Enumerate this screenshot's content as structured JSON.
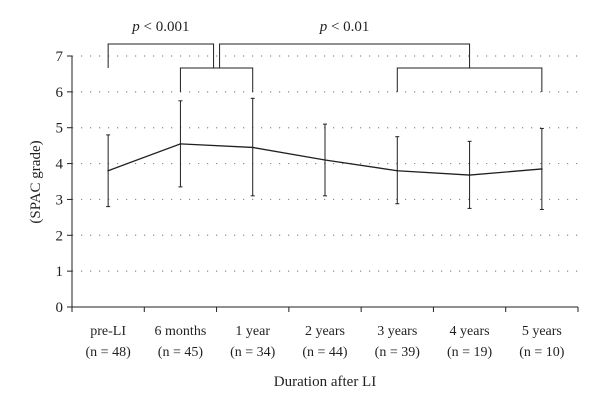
{
  "chart_data": {
    "type": "line",
    "xlabel": "Duration after LI",
    "ylabel": "(SPAC grade)",
    "ylim": [
      0,
      7
    ],
    "yticks": [
      0,
      1,
      2,
      3,
      4,
      5,
      6,
      7
    ],
    "grid": "horizontal dotted",
    "categories": [
      "pre-LI",
      "6 months",
      "1 year",
      "2 years",
      "3 years",
      "4 years",
      "5 years"
    ],
    "n_labels": [
      "(n = 48)",
      "(n = 45)",
      "(n = 34)",
      "(n = 44)",
      "(n = 39)",
      "(n = 19)",
      "(n = 10)"
    ],
    "series": [
      {
        "values": [
          3.8,
          4.55,
          4.45,
          4.1,
          3.8,
          3.68,
          3.85
        ],
        "error_low": [
          2.8,
          3.35,
          3.1,
          3.1,
          2.88,
          2.75,
          2.72
        ],
        "error_high": [
          4.8,
          5.75,
          5.82,
          5.1,
          4.75,
          4.62,
          4.98
        ]
      }
    ],
    "significance": [
      {
        "label": "p < 0.001",
        "group_a": [
          "pre-LI"
        ],
        "group_b": [
          "6 months",
          "1 year"
        ]
      },
      {
        "label": "p < 0.01",
        "group_a": [
          "6 months",
          "1 year"
        ],
        "group_b": [
          "3 years",
          "4 years",
          "5 years"
        ]
      }
    ],
    "colors": {
      "line": "#231f20",
      "grid": "#8c8c8c"
    }
  }
}
